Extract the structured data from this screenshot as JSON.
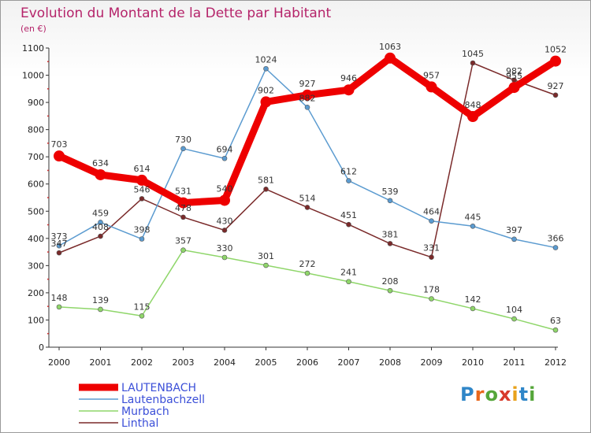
{
  "brand": {
    "letters": [
      "P",
      "r",
      "o",
      "x",
      "i",
      "t",
      "i"
    ],
    "colors": [
      "#2f86c8",
      "#e8671c",
      "#55a63a",
      "#d83a2b",
      "#e8a21c",
      "#2f86c8",
      "#55a63a"
    ]
  },
  "chart_data": {
    "type": "line",
    "title": "Evolution du Montant de la Dette par Habitant",
    "subtitle": "(en €)",
    "x": [
      "2000",
      "2001",
      "2002",
      "2003",
      "2004",
      "2005",
      "2006",
      "2007",
      "2008",
      "2009",
      "2010",
      "2011",
      "2012"
    ],
    "ylim": [
      0,
      1100
    ],
    "yticks": [
      0,
      100,
      200,
      300,
      400,
      500,
      600,
      700,
      800,
      900,
      1000,
      1100
    ],
    "grid": false,
    "legend_position": "bottom-left",
    "series": [
      {
        "name": "LAUTENBACH",
        "color": "#ee0000",
        "values": [
          703,
          634,
          614,
          531,
          540,
          902,
          927,
          946,
          1063,
          957,
          848,
          955,
          1052
        ]
      },
      {
        "name": "Lautenbachzell",
        "color": "#5b9bd0",
        "values": [
          373,
          459,
          398,
          730,
          694,
          1024,
          882,
          612,
          539,
          464,
          445,
          397,
          366
        ]
      },
      {
        "name": "Murbach",
        "color": "#8fd66a",
        "values": [
          148,
          139,
          115,
          357,
          330,
          301,
          272,
          241,
          208,
          178,
          142,
          104,
          63
        ]
      },
      {
        "name": "Linthal",
        "color": "#7a2a2a",
        "values": [
          347,
          408,
          546,
          478,
          430,
          581,
          514,
          451,
          381,
          331,
          1045,
          982,
          927
        ]
      }
    ]
  }
}
